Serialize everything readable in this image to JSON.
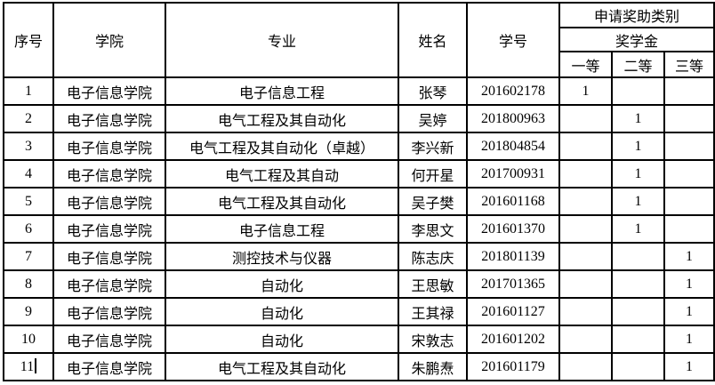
{
  "colors": {
    "text": "#000000",
    "border": "#000000",
    "background": "#ffffff"
  },
  "table": {
    "headers": {
      "serial": "序号",
      "college": "学院",
      "major": "专业",
      "name": "姓名",
      "student_id": "学号",
      "award_group": "申请奖助类别",
      "scholarship_group": "奖学金",
      "first_class": "一等",
      "second_class": "二等",
      "third_class": "三等"
    },
    "rows": [
      {
        "no": "1",
        "college": "电子信息学院",
        "major": "电子信息工程",
        "name": "张琴",
        "id": "201602178",
        "first": "1",
        "second": "",
        "third": "",
        "cursor": false
      },
      {
        "no": "2",
        "college": "电子信息学院",
        "major": "电气工程及其自动化",
        "name": "吴婷",
        "id": "201800963",
        "first": "",
        "second": "1",
        "third": "",
        "cursor": false
      },
      {
        "no": "3",
        "college": "电子信息学院",
        "major": "电气工程及其自动化（卓越）",
        "name": "李兴新",
        "id": "201804854",
        "first": "",
        "second": "1",
        "third": "",
        "cursor": false
      },
      {
        "no": "4",
        "college": "电子信息学院",
        "major": "电气工程及其自动",
        "name": "何开星",
        "id": "201700931",
        "first": "",
        "second": "1",
        "third": "",
        "cursor": false
      },
      {
        "no": "5",
        "college": "电子信息学院",
        "major": "电气工程及其自动化",
        "name": "吴子樊",
        "id": "201601168",
        "first": "",
        "second": "1",
        "third": "",
        "cursor": false
      },
      {
        "no": "6",
        "college": "电子信息学院",
        "major": "电子信息工程",
        "name": "李思文",
        "id": "201601370",
        "first": "",
        "second": "1",
        "third": "",
        "cursor": false
      },
      {
        "no": "7",
        "college": "电子信息学院",
        "major": "测控技术与仪器",
        "name": "陈志庆",
        "id": "201801139",
        "first": "",
        "second": "",
        "third": "1",
        "cursor": false
      },
      {
        "no": "8",
        "college": "电子信息学院",
        "major": "自动化",
        "name": "王思敏",
        "id": "201701365",
        "first": "",
        "second": "",
        "third": "1",
        "cursor": false
      },
      {
        "no": "9",
        "college": "电子信息学院",
        "major": "自动化",
        "name": "王其禄",
        "id": "201601127",
        "first": "",
        "second": "",
        "third": "1",
        "cursor": false
      },
      {
        "no": "10",
        "college": "电子信息学院",
        "major": "自动化",
        "name": "宋敦志",
        "id": "201601202",
        "first": "",
        "second": "",
        "third": "1",
        "cursor": false
      },
      {
        "no": "11",
        "college": "电子信息学院",
        "major": "电气工程及其自动化",
        "name": "朱鹏焘",
        "id": "201601179",
        "first": "",
        "second": "",
        "third": "1",
        "cursor": true
      }
    ]
  }
}
